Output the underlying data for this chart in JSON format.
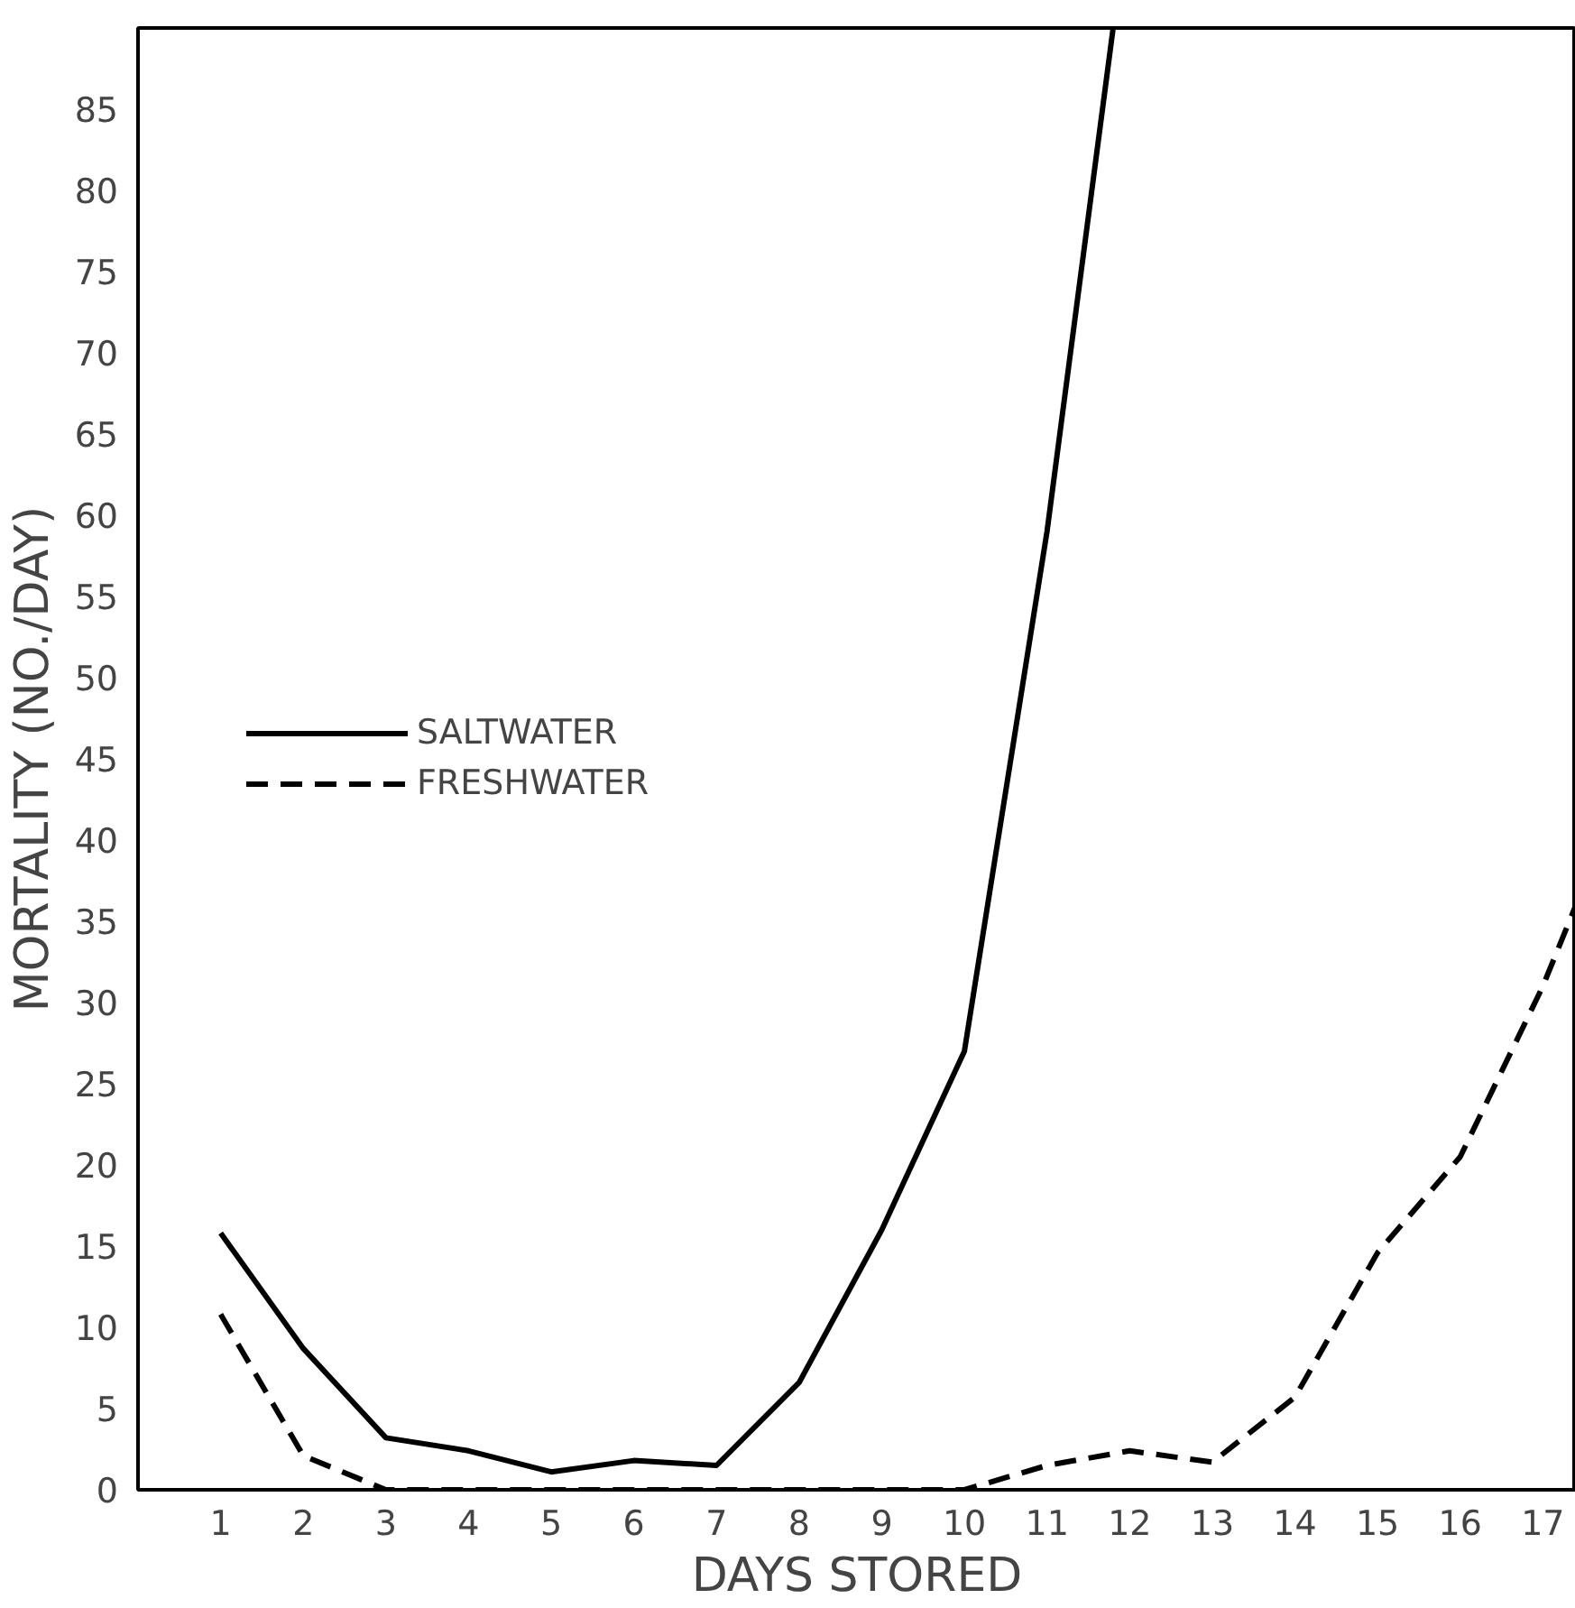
{
  "chart_data": {
    "type": "line",
    "xlabel": "DAYS STORED",
    "ylabel": "MORTALITY (NO./DAY)",
    "xlim": [
      0,
      17.4
    ],
    "ylim": [
      0,
      90
    ],
    "xticks": [
      1,
      2,
      3,
      4,
      5,
      6,
      7,
      8,
      9,
      10,
      11,
      12,
      13,
      14,
      15,
      16,
      17
    ],
    "yticks": [
      0,
      5,
      10,
      15,
      20,
      25,
      30,
      35,
      40,
      45,
      50,
      55,
      60,
      65,
      70,
      75,
      80,
      85
    ],
    "grid": false,
    "legend": "left",
    "marker": "none",
    "series": [
      {
        "name": "SALTWATER",
        "color": "#000000",
        "line_style": "solid",
        "x": [
          1,
          2,
          3,
          4,
          5,
          6,
          7,
          8,
          9,
          10,
          11,
          11.8
        ],
        "values": [
          15.8,
          8.7,
          3.2,
          2.4,
          1.1,
          1.8,
          1.5,
          6.6,
          16,
          27,
          59,
          90
        ]
      },
      {
        "name": "FRESHWATER",
        "color": "#000000",
        "line_style": "dashed",
        "x": [
          1,
          2,
          3,
          4,
          5,
          6,
          7,
          8,
          9,
          10,
          11,
          12,
          13,
          14,
          15,
          16,
          17,
          17.4
        ],
        "values": [
          10.8,
          2.1,
          0,
          0,
          0,
          0,
          0,
          0,
          0,
          0,
          1.5,
          2.4,
          1.7,
          5.7,
          14.6,
          20.5,
          31,
          36
        ]
      }
    ]
  }
}
